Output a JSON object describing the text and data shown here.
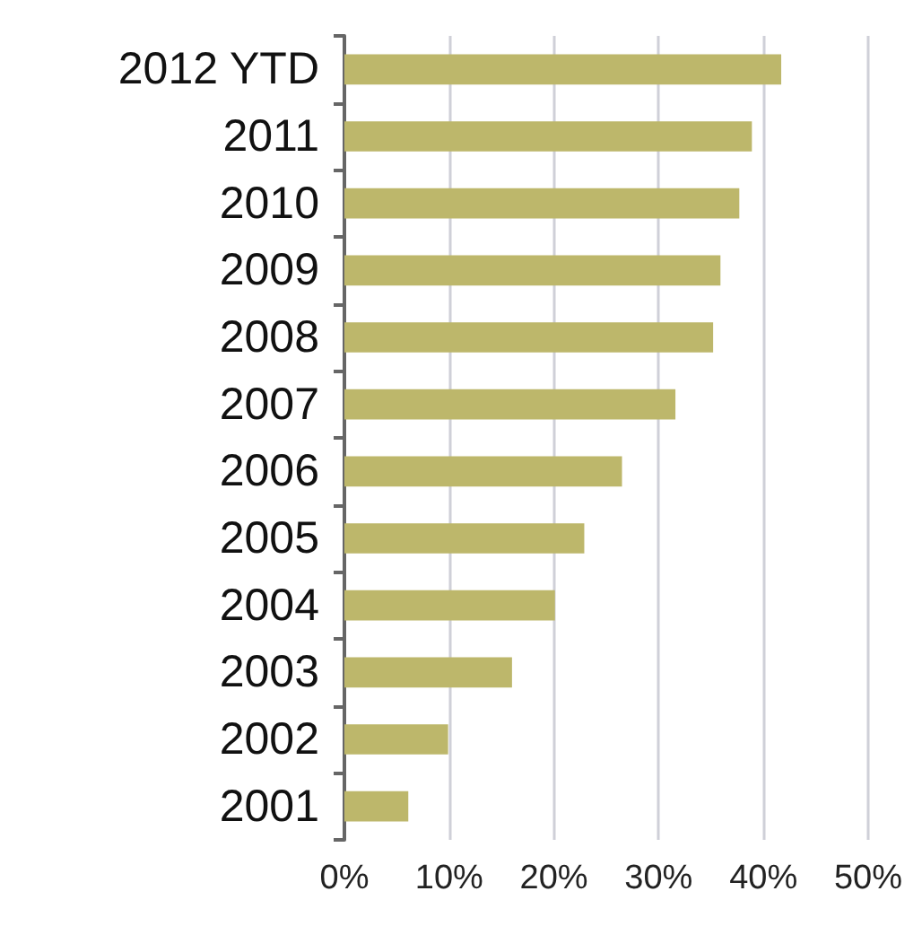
{
  "chart_data": {
    "type": "bar",
    "orientation": "horizontal",
    "categories": [
      "2012 YTD",
      "2011",
      "2010",
      "2009",
      "2008",
      "2007",
      "2006",
      "2005",
      "2004",
      "2003",
      "2002",
      "2001"
    ],
    "values": [
      41.7,
      38.9,
      37.7,
      35.9,
      35.2,
      31.6,
      26.5,
      22.9,
      20.1,
      16.0,
      9.9,
      6.1
    ],
    "color": "#bdb76b",
    "xlim": [
      0,
      50
    ],
    "xticks": [
      {
        "value": 0,
        "label": "0%"
      },
      {
        "value": 10,
        "label": "10%"
      },
      {
        "value": 20,
        "label": "20%"
      },
      {
        "value": 30,
        "label": "30%"
      },
      {
        "value": 40,
        "label": "40%"
      },
      {
        "value": 50,
        "label": "50%"
      }
    ],
    "grid": "x"
  }
}
